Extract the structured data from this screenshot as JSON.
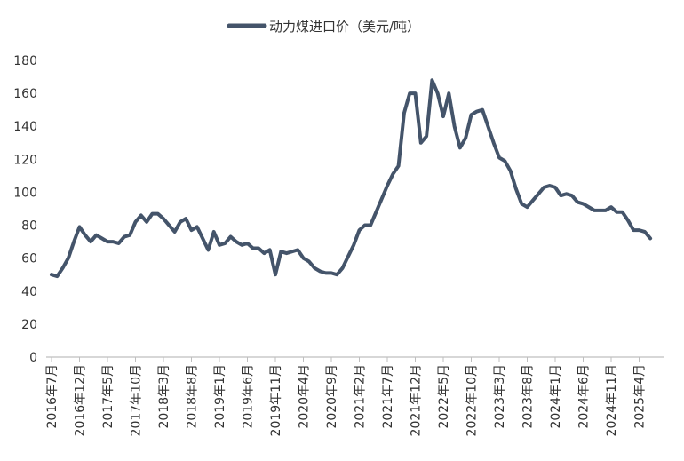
{
  "chart_data": {
    "type": "line",
    "title": "",
    "xlabel": "",
    "ylabel": "",
    "ylim": [
      0,
      180
    ],
    "y_ticks": [
      0,
      20,
      40,
      60,
      80,
      100,
      120,
      140,
      160,
      180
    ],
    "grid": false,
    "legend_position": "top-center",
    "x_tick_labels": [
      "2016年7月",
      "2016年12月",
      "2017年5月",
      "2017年10月",
      "2018年3月",
      "2018年8月",
      "2019年1月",
      "2019年6月",
      "2019年11月",
      "2020年4月",
      "2020年9月",
      "2021年2月",
      "2021年7月",
      "2021年12月",
      "2022年5月",
      "2022年10月",
      "2023年3月",
      "2023年8月",
      "2024年1月",
      "2024年6月",
      "2024年11月",
      "2025年4月"
    ],
    "series": [
      {
        "name": "动力煤进口价（美元/吨）",
        "color": "#44546a",
        "values": [
          [
            0,
            50
          ],
          [
            1,
            49
          ],
          [
            2,
            54
          ],
          [
            3,
            60
          ],
          [
            4,
            70
          ],
          [
            5,
            79
          ],
          [
            6,
            74
          ],
          [
            7,
            70
          ],
          [
            8,
            74
          ],
          [
            9,
            72
          ],
          [
            10,
            70
          ],
          [
            11,
            70
          ],
          [
            12,
            69
          ],
          [
            13,
            73
          ],
          [
            14,
            74
          ],
          [
            15,
            82
          ],
          [
            16,
            86
          ],
          [
            17,
            82
          ],
          [
            18,
            87
          ],
          [
            19,
            87
          ],
          [
            20,
            84
          ],
          [
            21,
            80
          ],
          [
            22,
            76
          ],
          [
            23,
            82
          ],
          [
            24,
            84
          ],
          [
            25,
            77
          ],
          [
            26,
            79
          ],
          [
            27,
            72
          ],
          [
            28,
            65
          ],
          [
            29,
            76
          ],
          [
            30,
            68
          ],
          [
            31,
            69
          ],
          [
            32,
            73
          ],
          [
            33,
            70
          ],
          [
            34,
            68
          ],
          [
            35,
            69
          ],
          [
            36,
            66
          ],
          [
            37,
            66
          ],
          [
            38,
            63
          ],
          [
            39,
            65
          ],
          [
            40,
            50
          ],
          [
            41,
            64
          ],
          [
            42,
            63
          ],
          [
            43,
            64
          ],
          [
            44,
            65
          ],
          [
            45,
            60
          ],
          [
            46,
            58
          ],
          [
            47,
            54
          ],
          [
            48,
            52
          ],
          [
            49,
            51
          ],
          [
            50,
            51
          ],
          [
            51,
            50
          ],
          [
            52,
            54
          ],
          [
            53,
            61
          ],
          [
            54,
            68
          ],
          [
            55,
            77
          ],
          [
            56,
            80
          ],
          [
            57,
            80
          ],
          [
            58,
            88
          ],
          [
            59,
            96
          ],
          [
            60,
            104
          ],
          [
            61,
            111
          ],
          [
            62,
            116
          ],
          [
            63,
            148
          ],
          [
            64,
            160
          ],
          [
            65,
            160
          ],
          [
            66,
            130
          ],
          [
            67,
            134
          ],
          [
            68,
            168
          ],
          [
            69,
            160
          ],
          [
            70,
            146
          ],
          [
            71,
            160
          ],
          [
            72,
            140
          ],
          [
            73,
            127
          ],
          [
            74,
            133
          ],
          [
            75,
            147
          ],
          [
            76,
            149
          ],
          [
            77,
            150
          ],
          [
            78,
            140
          ],
          [
            79,
            130
          ],
          [
            80,
            121
          ],
          [
            81,
            119
          ],
          [
            82,
            113
          ],
          [
            83,
            102
          ],
          [
            84,
            93
          ],
          [
            85,
            91
          ],
          [
            86,
            95
          ],
          [
            87,
            99
          ],
          [
            88,
            103
          ],
          [
            89,
            104
          ],
          [
            90,
            103
          ],
          [
            91,
            98
          ],
          [
            92,
            99
          ],
          [
            93,
            98
          ],
          [
            94,
            94
          ],
          [
            95,
            93
          ],
          [
            96,
            91
          ],
          [
            97,
            89
          ],
          [
            98,
            89
          ],
          [
            99,
            89
          ],
          [
            100,
            91
          ],
          [
            101,
            88
          ],
          [
            102,
            88
          ],
          [
            103,
            83
          ],
          [
            104,
            77
          ],
          [
            105,
            77
          ],
          [
            106,
            76
          ],
          [
            107,
            72
          ]
        ]
      }
    ]
  }
}
